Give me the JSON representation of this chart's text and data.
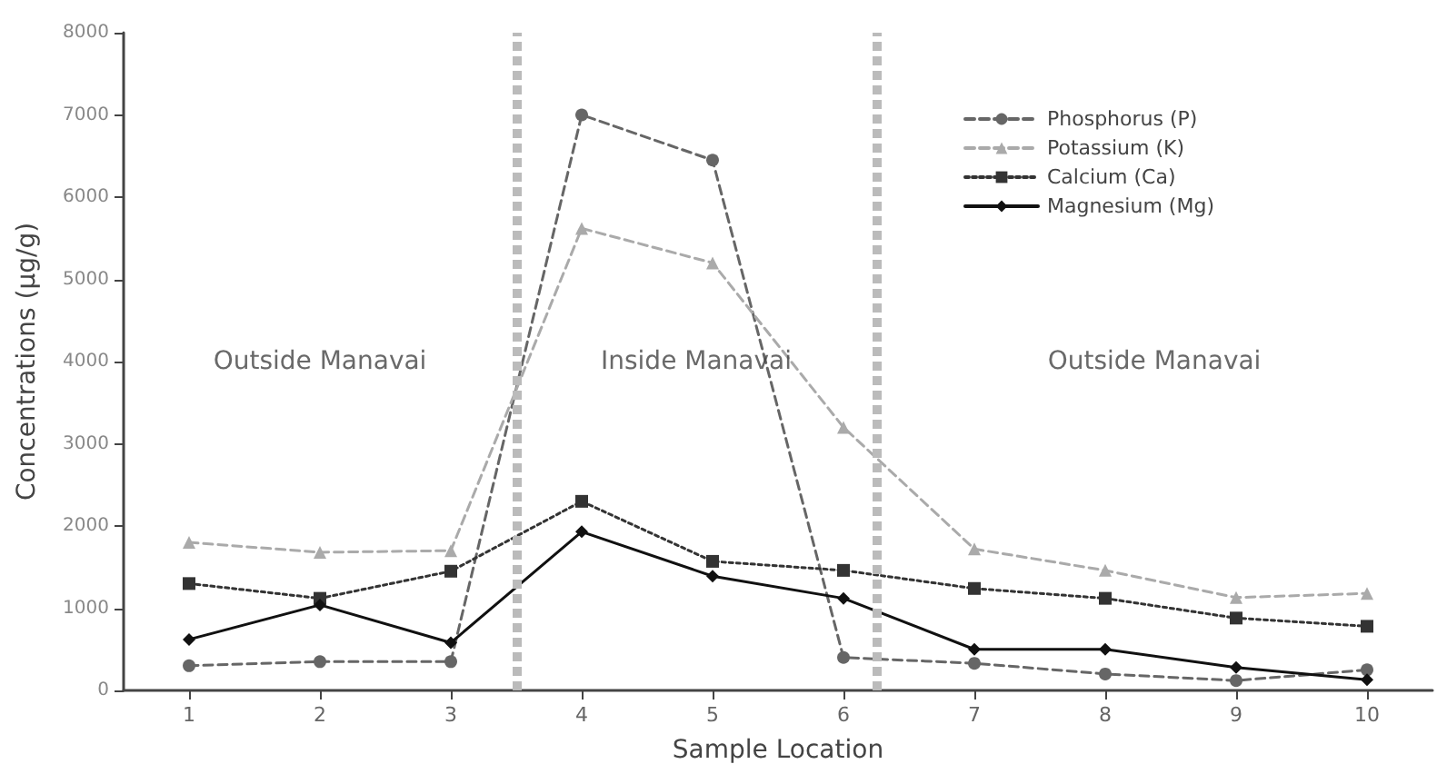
{
  "chart_data": {
    "type": "line",
    "xlabel": "Sample Location",
    "ylabel": "Concentrations (µg/g)",
    "x": [
      1,
      2,
      3,
      4,
      5,
      6,
      7,
      8,
      9,
      10
    ],
    "xlim": [
      0.5,
      10.5
    ],
    "xticks": [
      1,
      2,
      3,
      4,
      5,
      6,
      7,
      8,
      9,
      10
    ],
    "ylim": [
      0,
      8000
    ],
    "yticks": [
      0,
      1000,
      2000,
      3000,
      4000,
      5000,
      6000,
      7000,
      8000
    ],
    "grid": false,
    "legend": "top right",
    "series": [
      {
        "name": "Phosphorus (P)",
        "color": "#666666",
        "marker": "circle",
        "line_style": "dashed",
        "values": [
          300,
          350,
          350,
          7000,
          6450,
          400,
          330,
          200,
          120,
          250
        ]
      },
      {
        "name": "Potassium (K)",
        "color": "#aaaaaa",
        "marker": "triangle",
        "line_style": "dashed",
        "values": [
          1800,
          1680,
          1700,
          5620,
          5200,
          3200,
          1720,
          1460,
          1130,
          1180
        ]
      },
      {
        "name": "Calcium (Ca)",
        "color": "#333333",
        "marker": "square",
        "line_style": "dotted",
        "values": [
          1300,
          1120,
          1450,
          2300,
          1570,
          1460,
          1240,
          1120,
          880,
          780
        ]
      },
      {
        "name": "Magnesium (Mg)",
        "color": "#111111",
        "marker": "diamond",
        "line_style": "solid",
        "values": [
          620,
          1040,
          580,
          1930,
          1390,
          1120,
          500,
          500,
          280,
          130
        ]
      }
    ],
    "ref_lines": [
      {
        "axis": "x",
        "value": 3.5,
        "color": "#bbbbbb",
        "line_style": "dashed"
      },
      {
        "axis": "x",
        "value": 6.25,
        "color": "#bbbbbb",
        "line_style": "dashed"
      }
    ],
    "annotations": [
      "Outside Manavai",
      "Inside Manavai",
      "Outside Manavai"
    ]
  }
}
